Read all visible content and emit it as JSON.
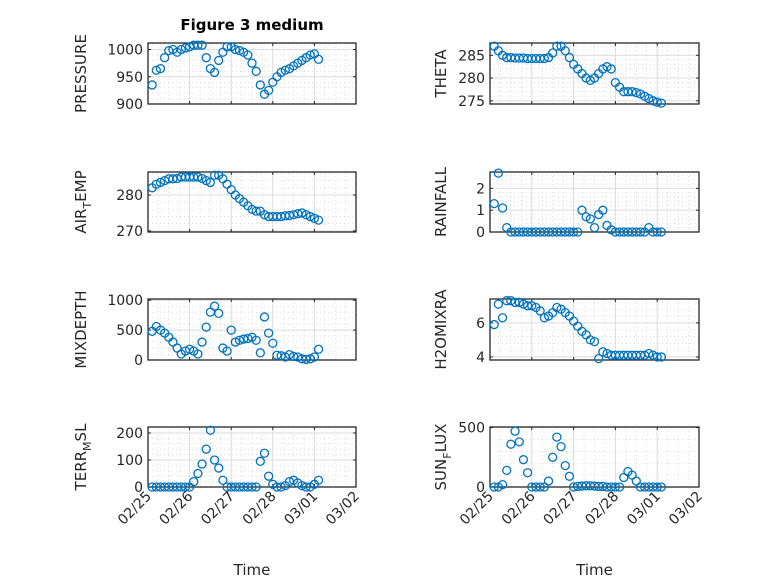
{
  "chart_data": {
    "type": "scatter",
    "title": "Figure 3 medium",
    "xlabel": "Time",
    "x_tick_labels": [
      "02/25",
      "02/26",
      "02/27",
      "02/28",
      "03/01",
      "03/02"
    ],
    "x_unit": "days since 02/25",
    "xlim": [
      0,
      5
    ],
    "grid": "on",
    "marker_color": "#0072BD",
    "x": [
      0.1,
      0.2,
      0.3,
      0.4,
      0.5,
      0.6,
      0.7,
      0.8,
      0.9,
      1.0,
      1.1,
      1.2,
      1.3,
      1.4,
      1.5,
      1.6,
      1.7,
      1.8,
      1.9,
      2.0,
      2.1,
      2.2,
      2.3,
      2.4,
      2.5,
      2.6,
      2.7,
      2.8,
      2.9,
      3.0,
      3.1,
      3.2,
      3.3,
      3.4,
      3.5,
      3.6,
      3.7,
      3.8,
      3.9,
      4.0,
      4.1
    ],
    "panels": [
      {
        "ylabel": "PRESSURE",
        "ylim": [
          900,
          1012
        ],
        "yticks": [
          900,
          950,
          1000
        ],
        "values": [
          935,
          962,
          965,
          985,
          998,
          1000,
          995,
          1000,
          1003,
          1005,
          1008,
          1008,
          1008,
          985,
          965,
          958,
          980,
          995,
          1005,
          1005,
          1000,
          998,
          995,
          990,
          975,
          960,
          935,
          918,
          925,
          940,
          950,
          958,
          962,
          965,
          970,
          975,
          980,
          985,
          990,
          992,
          982
        ]
      },
      {
        "ylabel": "THETA",
        "ylim": [
          274.3,
          287.7
        ],
        "yticks": [
          275,
          280,
          285
        ],
        "values": [
          287,
          286,
          285,
          284.5,
          284.5,
          284.4,
          284.4,
          284.4,
          284.3,
          284.3,
          284.3,
          284.3,
          284.3,
          284.5,
          285.5,
          287,
          287,
          286,
          284.5,
          283,
          282,
          281,
          280,
          279.5,
          280,
          281,
          282,
          282.5,
          282,
          279,
          278,
          277,
          277,
          277,
          276.8,
          276.5,
          276,
          275.5,
          275,
          274.7,
          274.5
        ]
      },
      {
        "ylabel": "AIR_TEMP",
        "ylim": [
          269.7,
          286.4
        ],
        "yticks": [
          270,
          280
        ],
        "values": [
          282,
          283,
          283.5,
          284,
          284.5,
          284.5,
          284.6,
          285,
          285,
          285,
          285,
          285,
          284.6,
          284,
          283.5,
          285.5,
          285.5,
          284.5,
          283,
          281.5,
          280,
          279,
          278,
          277,
          276,
          275.5,
          275.5,
          274.5,
          274,
          274,
          274,
          274,
          274.2,
          274.3,
          274.5,
          274.8,
          275,
          274.5,
          274,
          273.5,
          273
        ]
      },
      {
        "ylabel": "RAINFALL",
        "ylim": [
          0,
          2.75
        ],
        "yticks": [
          0,
          1,
          2
        ],
        "values": [
          1.3,
          2.7,
          1.1,
          0.2,
          0,
          0,
          0,
          0,
          0,
          0,
          0,
          0,
          0,
          0,
          0,
          0,
          0,
          0,
          0,
          0,
          0,
          1.0,
          0.7,
          0.6,
          0.2,
          0.8,
          1.0,
          0.3,
          0.1,
          0,
          0,
          0,
          0,
          0,
          0,
          0,
          0,
          0.2,
          0,
          0,
          0
        ]
      },
      {
        "ylabel": "MIXDEPTH",
        "ylim": [
          0,
          1020
        ],
        "yticks": [
          0,
          500,
          1000
        ],
        "values": [
          480,
          560,
          500,
          450,
          380,
          300,
          200,
          100,
          150,
          180,
          150,
          100,
          300,
          550,
          800,
          900,
          780,
          200,
          150,
          500,
          300,
          330,
          350,
          360,
          380,
          330,
          120,
          720,
          450,
          280,
          80,
          70,
          50,
          90,
          60,
          50,
          20,
          10,
          20,
          50,
          180
        ]
      },
      {
        "ylabel": "H2OMIXRA",
        "ylim": [
          3.82,
          7.4
        ],
        "yticks": [
          4,
          6
        ],
        "values": [
          5.9,
          7.1,
          6.3,
          7.3,
          7.3,
          7.2,
          7.2,
          7.1,
          7.0,
          7.0,
          6.9,
          6.7,
          6.3,
          6.4,
          6.6,
          6.9,
          6.8,
          6.6,
          6.4,
          6.1,
          5.8,
          5.5,
          5.3,
          5.0,
          4.9,
          3.9,
          4.3,
          4.2,
          4.1,
          4.1,
          4.1,
          4.1,
          4.1,
          4.1,
          4.1,
          4.1,
          4.1,
          4.2,
          4.1,
          4.0,
          4.0
        ]
      },
      {
        "ylabel": "TERR_MSL",
        "ylim": [
          0,
          222
        ],
        "yticks": [
          0,
          100,
          200
        ],
        "values": [
          0,
          0,
          0,
          0,
          0,
          0,
          0,
          0,
          0,
          0,
          20,
          50,
          85,
          140,
          210,
          100,
          70,
          25,
          0,
          0,
          0,
          0,
          0,
          0,
          0,
          0,
          95,
          125,
          40,
          10,
          0,
          0,
          5,
          20,
          25,
          15,
          5,
          0,
          0,
          10,
          25
        ]
      },
      {
        "ylabel": "SUN_FLUX",
        "ylim": [
          0,
          505
        ],
        "yticks": [
          0,
          500
        ],
        "values": [
          0,
          0,
          20,
          140,
          360,
          470,
          380,
          230,
          120,
          0,
          0,
          0,
          0,
          50,
          250,
          420,
          340,
          180,
          90,
          0,
          5,
          8,
          10,
          10,
          8,
          5,
          5,
          0,
          0,
          0,
          0,
          80,
          130,
          100,
          50,
          0,
          0,
          0,
          0,
          0,
          0
        ]
      }
    ]
  }
}
